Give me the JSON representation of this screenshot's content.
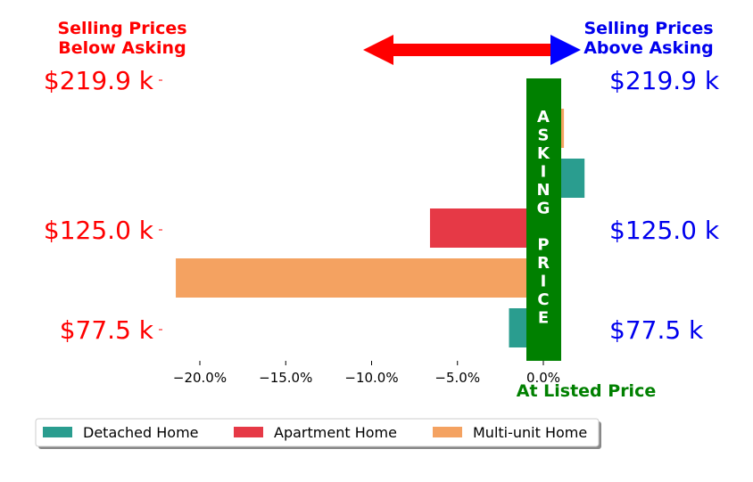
{
  "chart_data": {
    "type": "bar",
    "orientation": "horizontal",
    "title_left": [
      "Selling Prices",
      "Below Asking"
    ],
    "title_right": [
      "Selling Prices",
      "Above Asking"
    ],
    "xlabel": "At Listed Price",
    "center_label": "ASKING PRICE",
    "xlim": [
      -22.5,
      3.0
    ],
    "xticks": [
      -20,
      -15,
      -10,
      -5,
      0
    ],
    "xtick_labels": [
      "−20.0%",
      "−15.0%",
      "−10.0%",
      "−5.0%",
      "0.0%"
    ],
    "price_levels": [
      "$219.9 k",
      "$125.0 k",
      "$77.5 k"
    ],
    "series": [
      {
        "name": "Detached Home",
        "values": [
          -2.0,
          2.4
        ]
      },
      {
        "name": "Apartment Home",
        "values": [
          -6.6
        ]
      },
      {
        "name": "Multi-unit Home",
        "values": [
          -21.4,
          1.2
        ]
      }
    ],
    "bars": [
      {
        "series": "Multi-unit Home",
        "price_level": "$219.9 k",
        "value": 1.2
      },
      {
        "series": "Detached Home",
        "price_level": "$219.9 k",
        "value": 2.4
      },
      {
        "series": "Apartment Home",
        "price_level": "$125.0 k",
        "value": -6.6
      },
      {
        "series": "Multi-unit Home",
        "price_level": "$125.0 k",
        "value": -21.4
      },
      {
        "series": "Detached Home",
        "price_level": "$77.5 k",
        "value": -2.0
      }
    ],
    "legend_position": "bottom",
    "colors": {
      "Detached Home": "#2a9d8f",
      "Apartment Home": "#e63946",
      "Multi-unit Home": "#f4a261",
      "left_text": "#ff0000",
      "right_text": "#0000ee",
      "center": "#008000",
      "arrow_left": "#ff0000",
      "arrow_right": "#0000ff"
    }
  }
}
